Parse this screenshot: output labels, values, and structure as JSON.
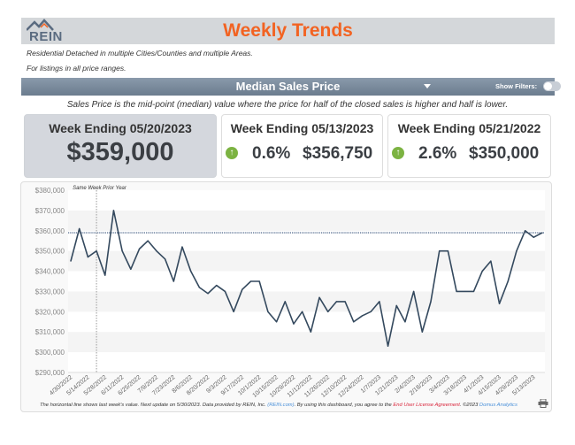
{
  "header": {
    "logo": "REIN",
    "title": "Weekly Trends"
  },
  "filters_text": [
    "Residential Detached in multiple Cities/Counties and multiple Areas.",
    "For listings in all price ranges."
  ],
  "metric_bar": {
    "selected": "Median Sales Price",
    "show_filters_label": "Show Filters:",
    "show_filters": false
  },
  "description": "Sales Price is the mid-point (median) value where the price for half of the closed sales is higher and half is lower.",
  "cards": [
    {
      "title": "Week Ending 05/20/2023",
      "value": "$359,000"
    },
    {
      "title": "Week Ending 05/13/2023",
      "change": "0.6%",
      "value": "$356,750",
      "trend_icon": "arrow-up-icon"
    },
    {
      "title": "Week Ending 05/21/2022",
      "change": "2.6%",
      "value": "$350,000",
      "trend_icon": "arrow-up-icon"
    }
  ],
  "colors": {
    "accent": "#f26322",
    "line": "#34495e",
    "up": "#7cb342"
  },
  "chart_data": {
    "type": "line",
    "annotation": "Same Week Prior Year",
    "annotation_date": "5/21/2022",
    "reference_line": 359000,
    "ylim": [
      290000,
      380000
    ],
    "yticks": [
      "$290,000",
      "$300,000",
      "$310,000",
      "$320,000",
      "$330,000",
      "$340,000",
      "$350,000",
      "$360,000",
      "$370,000",
      "$380,000"
    ],
    "xtick_labels": [
      "4/30/2022",
      "5/14/2022",
      "5/28/2022",
      "6/11/2022",
      "6/25/2022",
      "7/9/2022",
      "7/23/2022",
      "8/6/2022",
      "8/20/2022",
      "9/3/2022",
      "9/17/2022",
      "10/1/2022",
      "10/15/2022",
      "10/29/2022",
      "11/12/2022",
      "11/26/2022",
      "12/10/2022",
      "12/24/2022",
      "1/7/2023",
      "1/21/2023",
      "2/4/2023",
      "2/18/2023",
      "3/4/2023",
      "3/18/2023",
      "4/1/2023",
      "4/15/2023",
      "4/29/2023",
      "5/13/2023"
    ],
    "x_start": "4/30/2022",
    "x_end": "5/20/2023",
    "x_interval": "weekly",
    "values": [
      345000,
      361000,
      347000,
      350000,
      338000,
      370000,
      350000,
      341000,
      351000,
      355000,
      350000,
      346000,
      335000,
      352000,
      340000,
      332000,
      329000,
      333000,
      330000,
      320000,
      331000,
      335000,
      335000,
      320000,
      315000,
      325000,
      314000,
      320000,
      310000,
      327000,
      320000,
      325000,
      325000,
      315000,
      318000,
      320000,
      325000,
      303000,
      323000,
      315000,
      330000,
      310000,
      325000,
      350000,
      350000,
      330000,
      330000,
      330000,
      340000,
      345000,
      324000,
      335000,
      350000,
      360000,
      356750,
      359000
    ],
    "grid": true
  },
  "footer": {
    "text1": "The horizontal line shows last week's value.  Next update on 5/30/2023.  Data provided by REIN, Inc. ",
    "link1": "(REIN.com)",
    "text2": ".  By using this dashboard, you agree to the ",
    "link2": "End User License Agreement",
    "text3": ".  ©2023 ",
    "link3": "Domus Analytics"
  }
}
